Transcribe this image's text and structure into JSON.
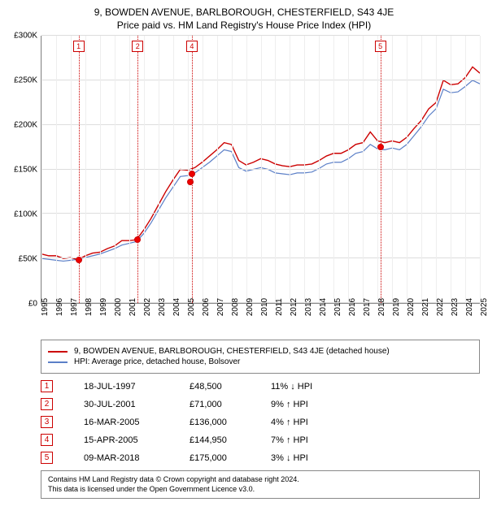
{
  "title": {
    "line1": "9, BOWDEN AVENUE, BARLBOROUGH, CHESTERFIELD, S43 4JE",
    "line2": "Price paid vs. HM Land Registry's House Price Index (HPI)"
  },
  "chart": {
    "type": "line",
    "x_start_year": 1995,
    "x_end_year": 2025,
    "y_min": 0,
    "y_max": 300000,
    "y_step": 50000,
    "y_prefix": "£",
    "y_suffix": "K",
    "grid_color": "#dddddd",
    "axis_color": "#888888",
    "background": "#ffffff",
    "series": [
      {
        "id": "property",
        "label": "9, BOWDEN AVENUE, BARLBOROUGH, CHESTERFIELD, S43 4JE (detached house)",
        "color": "#cc0000",
        "width": 1.4,
        "points": [
          [
            1995,
            55000
          ],
          [
            1995.5,
            53000
          ],
          [
            1996,
            53000
          ],
          [
            1996.5,
            50000
          ],
          [
            1997,
            51000
          ],
          [
            1997.5,
            48500
          ],
          [
            1998,
            53000
          ],
          [
            1998.5,
            56000
          ],
          [
            1999,
            57000
          ],
          [
            1999.5,
            61000
          ],
          [
            2000,
            64000
          ],
          [
            2000.5,
            70000
          ],
          [
            2001,
            70000
          ],
          [
            2001.5,
            71000
          ],
          [
            2002,
            82000
          ],
          [
            2002.5,
            95000
          ],
          [
            2003,
            110000
          ],
          [
            2003.5,
            125000
          ],
          [
            2004,
            138000
          ],
          [
            2004.5,
            150000
          ],
          [
            2005,
            149000
          ],
          [
            2005.5,
            152000
          ],
          [
            2006,
            158000
          ],
          [
            2006.5,
            165000
          ],
          [
            2007,
            172000
          ],
          [
            2007.5,
            180000
          ],
          [
            2008,
            178000
          ],
          [
            2008.5,
            160000
          ],
          [
            2009,
            155000
          ],
          [
            2009.5,
            158000
          ],
          [
            2010,
            162000
          ],
          [
            2010.5,
            160000
          ],
          [
            2011,
            156000
          ],
          [
            2011.5,
            154000
          ],
          [
            2012,
            153000
          ],
          [
            2012.5,
            155000
          ],
          [
            2013,
            155000
          ],
          [
            2013.5,
            156000
          ],
          [
            2014,
            160000
          ],
          [
            2014.5,
            165000
          ],
          [
            2015,
            168000
          ],
          [
            2015.5,
            168000
          ],
          [
            2016,
            172000
          ],
          [
            2016.5,
            178000
          ],
          [
            2017,
            180000
          ],
          [
            2017.5,
            192000
          ],
          [
            2018,
            182000
          ],
          [
            2018.5,
            180000
          ],
          [
            2019,
            182000
          ],
          [
            2019.5,
            180000
          ],
          [
            2020,
            186000
          ],
          [
            2020.5,
            196000
          ],
          [
            2021,
            205000
          ],
          [
            2021.5,
            218000
          ],
          [
            2022,
            225000
          ],
          [
            2022.5,
            250000
          ],
          [
            2023,
            245000
          ],
          [
            2023.5,
            246000
          ],
          [
            2024,
            253000
          ],
          [
            2024.5,
            265000
          ],
          [
            2025,
            258000
          ]
        ]
      },
      {
        "id": "hpi",
        "label": "HPI: Average price, detached house, Bolsover",
        "color": "#5b7fc7",
        "width": 1.2,
        "points": [
          [
            1995,
            50000
          ],
          [
            1995.5,
            49000
          ],
          [
            1996,
            48000
          ],
          [
            1996.5,
            47000
          ],
          [
            1997,
            48000
          ],
          [
            1997.5,
            49000
          ],
          [
            1998,
            51000
          ],
          [
            1998.5,
            53000
          ],
          [
            1999,
            55000
          ],
          [
            1999.5,
            58000
          ],
          [
            2000,
            61000
          ],
          [
            2000.5,
            65000
          ],
          [
            2001,
            67000
          ],
          [
            2001.5,
            69000
          ],
          [
            2002,
            78000
          ],
          [
            2002.5,
            90000
          ],
          [
            2003,
            104000
          ],
          [
            2003.5,
            118000
          ],
          [
            2004,
            130000
          ],
          [
            2004.5,
            142000
          ],
          [
            2005,
            143000
          ],
          [
            2005.5,
            146000
          ],
          [
            2006,
            152000
          ],
          [
            2006.5,
            158000
          ],
          [
            2007,
            165000
          ],
          [
            2007.5,
            172000
          ],
          [
            2008,
            170000
          ],
          [
            2008.5,
            152000
          ],
          [
            2009,
            148000
          ],
          [
            2009.5,
            150000
          ],
          [
            2010,
            152000
          ],
          [
            2010.5,
            150000
          ],
          [
            2011,
            146000
          ],
          [
            2011.5,
            145000
          ],
          [
            2012,
            144000
          ],
          [
            2012.5,
            146000
          ],
          [
            2013,
            146000
          ],
          [
            2013.5,
            147000
          ],
          [
            2014,
            151000
          ],
          [
            2014.5,
            156000
          ],
          [
            2015,
            158000
          ],
          [
            2015.5,
            158000
          ],
          [
            2016,
            162000
          ],
          [
            2016.5,
            168000
          ],
          [
            2017,
            170000
          ],
          [
            2017.5,
            178000
          ],
          [
            2018,
            173000
          ],
          [
            2018.5,
            172000
          ],
          [
            2019,
            174000
          ],
          [
            2019.5,
            172000
          ],
          [
            2020,
            178000
          ],
          [
            2020.5,
            188000
          ],
          [
            2021,
            198000
          ],
          [
            2021.5,
            210000
          ],
          [
            2022,
            218000
          ],
          [
            2022.5,
            240000
          ],
          [
            2023,
            236000
          ],
          [
            2023.5,
            237000
          ],
          [
            2024,
            243000
          ],
          [
            2024.5,
            250000
          ],
          [
            2025,
            246000
          ]
        ]
      }
    ],
    "events": [
      {
        "n": "1",
        "year": 1997.54,
        "price_y": 48500,
        "date": "18-JUL-1997",
        "price": "£48,500",
        "pct": "11% ↓ HPI",
        "color": "#cc0000"
      },
      {
        "n": "2",
        "year": 2001.58,
        "price_y": 71000,
        "date": "30-JUL-2001",
        "price": "£71,000",
        "pct": "9% ↑ HPI",
        "color": "#cc0000"
      },
      {
        "n": "3",
        "year": 2005.21,
        "price_y": 136000,
        "date": "16-MAR-2005",
        "price": "£136,000",
        "pct": "4% ↑ HPI",
        "color": "#cc0000",
        "no_line": true
      },
      {
        "n": "4",
        "year": 2005.29,
        "price_y": 144950,
        "date": "15-APR-2005",
        "price": "£144,950",
        "pct": "7% ↑ HPI",
        "color": "#cc0000"
      },
      {
        "n": "5",
        "year": 2018.19,
        "price_y": 175000,
        "date": "09-MAR-2018",
        "price": "£175,000",
        "pct": "3% ↓ HPI",
        "color": "#cc0000"
      }
    ]
  },
  "footer": {
    "line1": "Contains HM Land Registry data © Crown copyright and database right 2024.",
    "line2": "This data is licensed under the Open Government Licence v3.0."
  }
}
